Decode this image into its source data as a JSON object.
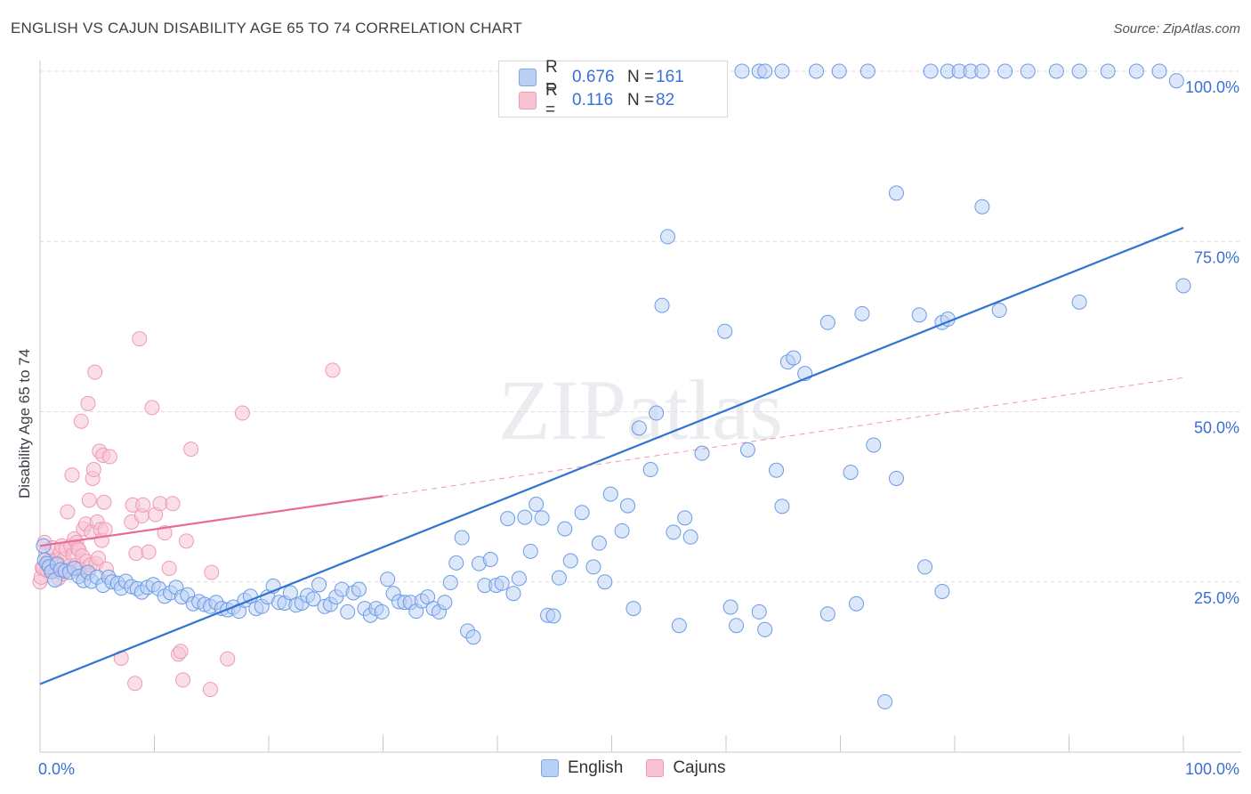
{
  "header": {
    "title": "ENGLISH VS CAJUN DISABILITY AGE 65 TO 74 CORRELATION CHART",
    "source": "Source: ZipAtlas.com"
  },
  "watermark": "ZIPatlas",
  "legend_top": {
    "rows": [
      {
        "r_label": "R =",
        "r_value": "0.676",
        "n_label": "N =",
        "n_value": "161"
      },
      {
        "r_label": "R =",
        "r_value": "0.116",
        "n_label": "N =",
        "n_value": "82"
      }
    ]
  },
  "legend_bottom": [
    "English",
    "Cajuns"
  ],
  "chart_data": {
    "type": "scatter",
    "title": "ENGLISH VS CAJUN DISABILITY AGE 65 TO 74 CORRELATION CHART",
    "xlabel": "",
    "ylabel": "Disability Age 65 to 74",
    "xlim": [
      0,
      100
    ],
    "ylim": [
      0,
      100
    ],
    "x_tick_labels": [
      "0.0%",
      "100.0%"
    ],
    "y_tick_labels": [
      "25.0%",
      "50.0%",
      "75.0%",
      "100.0%"
    ],
    "y_ticks": [
      25,
      50,
      75,
      100
    ],
    "grid": true,
    "legend_position": "top-center",
    "colors": {
      "English": "#6a9be6",
      "Cajuns": "#f08cad",
      "english_line": "#2e74d0",
      "cajun_line": "#e86b96",
      "axis_text": "#3a6fd6"
    },
    "series": [
      {
        "name": "English",
        "r": 0.676,
        "n": 161,
        "trend": {
          "x": [
            0,
            100
          ],
          "y": [
            10.0,
            77.0
          ]
        },
        "points": [
          [
            0.3,
            30.3
          ],
          [
            0.4,
            28.2
          ],
          [
            0.6,
            27.7
          ],
          [
            0.8,
            27.2
          ],
          [
            1.0,
            26.5
          ],
          [
            1.3,
            25.3
          ],
          [
            1.5,
            27.6
          ],
          [
            1.8,
            26.8
          ],
          [
            2.2,
            26.6
          ],
          [
            2.6,
            26.4
          ],
          [
            3.0,
            27.0
          ],
          [
            3.4,
            25.8
          ],
          [
            3.8,
            25.2
          ],
          [
            4.2,
            26.4
          ],
          [
            4.5,
            25.1
          ],
          [
            5.0,
            25.7
          ],
          [
            5.5,
            24.5
          ],
          [
            6.0,
            25.7
          ],
          [
            6.3,
            25.0
          ],
          [
            6.8,
            24.8
          ],
          [
            7.1,
            24.1
          ],
          [
            7.5,
            25.1
          ],
          [
            8.0,
            24.3
          ],
          [
            8.5,
            24.0
          ],
          [
            8.9,
            23.5
          ],
          [
            9.4,
            24.2
          ],
          [
            9.9,
            24.6
          ],
          [
            10.4,
            24.0
          ],
          [
            10.9,
            22.9
          ],
          [
            11.4,
            23.4
          ],
          [
            11.9,
            24.2
          ],
          [
            12.4,
            22.8
          ],
          [
            12.9,
            23.1
          ],
          [
            13.4,
            21.8
          ],
          [
            13.9,
            22.1
          ],
          [
            14.4,
            21.7
          ],
          [
            14.9,
            21.4
          ],
          [
            15.4,
            22.0
          ],
          [
            15.9,
            21.1
          ],
          [
            16.4,
            20.9
          ],
          [
            16.9,
            21.3
          ],
          [
            17.4,
            20.7
          ],
          [
            17.9,
            22.3
          ],
          [
            18.4,
            22.9
          ],
          [
            18.9,
            21.1
          ],
          [
            19.4,
            21.4
          ],
          [
            19.9,
            22.8
          ],
          [
            20.4,
            24.4
          ],
          [
            20.9,
            22.0
          ],
          [
            21.4,
            21.9
          ],
          [
            21.9,
            23.4
          ],
          [
            22.4,
            21.6
          ],
          [
            22.9,
            21.9
          ],
          [
            23.4,
            23.0
          ],
          [
            23.9,
            22.5
          ],
          [
            24.4,
            24.6
          ],
          [
            24.9,
            21.4
          ],
          [
            25.4,
            21.7
          ],
          [
            25.9,
            22.8
          ],
          [
            26.4,
            23.9
          ],
          [
            26.9,
            20.6
          ],
          [
            27.4,
            23.4
          ],
          [
            27.9,
            23.9
          ],
          [
            28.4,
            21.1
          ],
          [
            28.9,
            20.1
          ],
          [
            29.4,
            21.1
          ],
          [
            29.9,
            20.6
          ],
          [
            30.4,
            25.4
          ],
          [
            30.9,
            23.3
          ],
          [
            31.4,
            22.1
          ],
          [
            31.9,
            22.0
          ],
          [
            32.4,
            22.0
          ],
          [
            32.9,
            20.7
          ],
          [
            33.4,
            22.2
          ],
          [
            33.9,
            22.8
          ],
          [
            34.4,
            21.1
          ],
          [
            34.9,
            20.6
          ],
          [
            35.4,
            22.0
          ],
          [
            35.9,
            24.9
          ],
          [
            36.4,
            27.8
          ],
          [
            36.9,
            31.5
          ],
          [
            37.4,
            17.8
          ],
          [
            37.9,
            16.9
          ],
          [
            38.4,
            27.7
          ],
          [
            38.9,
            24.5
          ],
          [
            39.4,
            28.3
          ],
          [
            39.9,
            24.5
          ],
          [
            40.4,
            24.8
          ],
          [
            40.9,
            34.3
          ],
          [
            41.4,
            23.3
          ],
          [
            41.9,
            25.5
          ],
          [
            42.4,
            34.5
          ],
          [
            42.9,
            29.5
          ],
          [
            43.4,
            36.4
          ],
          [
            43.9,
            34.4
          ],
          [
            44.4,
            20.1
          ],
          [
            44.9,
            20.0
          ],
          [
            45.4,
            25.6
          ],
          [
            45.9,
            32.8
          ],
          [
            46.4,
            28.1
          ],
          [
            47.4,
            35.2
          ],
          [
            48.4,
            27.2
          ],
          [
            48.9,
            30.7
          ],
          [
            49.4,
            25.0
          ],
          [
            49.9,
            37.9
          ],
          [
            50.9,
            32.5
          ],
          [
            51.4,
            36.2
          ],
          [
            51.9,
            21.1
          ],
          [
            52.4,
            47.6
          ],
          [
            53.4,
            41.5
          ],
          [
            53.9,
            49.8
          ],
          [
            54.4,
            65.6
          ],
          [
            54.9,
            75.7
          ],
          [
            55.4,
            32.3
          ],
          [
            55.9,
            18.6
          ],
          [
            56.4,
            34.4
          ],
          [
            56.9,
            31.6
          ],
          [
            57.9,
            43.9
          ],
          [
            59.9,
            61.8
          ],
          [
            60.4,
            21.3
          ],
          [
            60.9,
            18.6
          ],
          [
            61.9,
            44.4
          ],
          [
            62.9,
            20.6
          ],
          [
            63.4,
            18.0
          ],
          [
            64.4,
            41.4
          ],
          [
            64.9,
            36.1
          ],
          [
            65.4,
            57.3
          ],
          [
            65.9,
            57.9
          ],
          [
            66.9,
            55.6
          ],
          [
            68.9,
            63.1
          ],
          [
            68.9,
            20.3
          ],
          [
            70.9,
            41.1
          ],
          [
            71.4,
            21.8
          ],
          [
            71.9,
            64.4
          ],
          [
            72.9,
            45.1
          ],
          [
            73.9,
            7.4
          ],
          [
            74.9,
            40.2
          ],
          [
            74.9,
            82.1
          ],
          [
            76.9,
            64.2
          ],
          [
            77.4,
            27.2
          ],
          [
            78.9,
            63.1
          ],
          [
            78.9,
            23.6
          ],
          [
            79.4,
            63.6
          ],
          [
            82.4,
            80.1
          ],
          [
            83.9,
            64.9
          ],
          [
            90.9,
            66.1
          ],
          [
            99.4,
            98.6
          ],
          [
            100.0,
            68.5
          ],
          [
            52.9,
            100.0
          ],
          [
            55.9,
            100.0
          ],
          [
            57.4,
            100.0
          ],
          [
            58.4,
            94.5
          ],
          [
            61.4,
            100.0
          ],
          [
            62.9,
            100.0
          ],
          [
            63.4,
            100.0
          ],
          [
            64.9,
            100.0
          ],
          [
            67.9,
            100.0
          ],
          [
            69.9,
            100.0
          ],
          [
            72.4,
            100.0
          ],
          [
            77.9,
            100.0
          ],
          [
            79.4,
            100.0
          ],
          [
            80.4,
            100.0
          ],
          [
            81.4,
            100.0
          ],
          [
            82.4,
            100.0
          ],
          [
            84.4,
            100.0
          ],
          [
            86.4,
            100.0
          ],
          [
            88.9,
            100.0
          ],
          [
            90.9,
            100.0
          ],
          [
            93.4,
            100.0
          ],
          [
            95.9,
            100.0
          ],
          [
            97.9,
            100.0
          ]
        ]
      },
      {
        "name": "Cajuns",
        "r": 0.116,
        "n": 82,
        "trend": {
          "x": [
            0,
            30
          ],
          "y": [
            30.3,
            37.6
          ]
        },
        "trend_extension": {
          "x": [
            30,
            100
          ],
          "y": [
            37.6,
            55.0
          ]
        },
        "points": [
          [
            0.0,
            25.0
          ],
          [
            0.1,
            25.7
          ],
          [
            0.2,
            27.1
          ],
          [
            0.3,
            27.0
          ],
          [
            0.4,
            30.8
          ],
          [
            0.5,
            29.3
          ],
          [
            0.6,
            26.7
          ],
          [
            0.7,
            28.0
          ],
          [
            0.8,
            27.4
          ],
          [
            0.9,
            27.1
          ],
          [
            1.0,
            26.7
          ],
          [
            1.1,
            30.0
          ],
          [
            1.3,
            28.2
          ],
          [
            1.4,
            26.5
          ],
          [
            1.5,
            27.8
          ],
          [
            1.6,
            25.5
          ],
          [
            1.8,
            29.4
          ],
          [
            1.9,
            30.3
          ],
          [
            2.0,
            26.2
          ],
          [
            2.1,
            28.3
          ],
          [
            2.2,
            26.6
          ],
          [
            2.3,
            29.8
          ],
          [
            2.4,
            35.3
          ],
          [
            2.5,
            26.8
          ],
          [
            2.6,
            27.4
          ],
          [
            2.7,
            30.3
          ],
          [
            2.8,
            40.7
          ],
          [
            2.9,
            29.0
          ],
          [
            3.0,
            31.3
          ],
          [
            3.1,
            27.4
          ],
          [
            3.2,
            30.8
          ],
          [
            3.3,
            29.9
          ],
          [
            3.4,
            29.7
          ],
          [
            3.5,
            26.9
          ],
          [
            3.6,
            48.6
          ],
          [
            3.7,
            28.8
          ],
          [
            3.8,
            32.8
          ],
          [
            3.9,
            26.1
          ],
          [
            4.0,
            33.5
          ],
          [
            4.1,
            28.0
          ],
          [
            4.2,
            51.2
          ],
          [
            4.3,
            37.0
          ],
          [
            4.4,
            27.5
          ],
          [
            4.5,
            32.3
          ],
          [
            4.6,
            40.2
          ],
          [
            4.7,
            41.5
          ],
          [
            4.8,
            55.8
          ],
          [
            4.9,
            27.7
          ],
          [
            5.0,
            33.8
          ],
          [
            5.1,
            28.5
          ],
          [
            5.2,
            44.2
          ],
          [
            5.3,
            32.7
          ],
          [
            5.4,
            31.1
          ],
          [
            5.5,
            43.6
          ],
          [
            5.6,
            36.7
          ],
          [
            5.7,
            32.7
          ],
          [
            5.8,
            26.9
          ],
          [
            6.1,
            43.4
          ],
          [
            7.1,
            13.8
          ],
          [
            8.0,
            33.8
          ],
          [
            8.1,
            36.3
          ],
          [
            8.3,
            10.1
          ],
          [
            8.4,
            29.2
          ],
          [
            8.7,
            60.7
          ],
          [
            8.9,
            34.7
          ],
          [
            9.0,
            36.3
          ],
          [
            9.5,
            29.4
          ],
          [
            9.8,
            50.6
          ],
          [
            10.1,
            34.9
          ],
          [
            10.5,
            36.5
          ],
          [
            10.9,
            32.2
          ],
          [
            11.3,
            27.0
          ],
          [
            11.6,
            36.5
          ],
          [
            12.1,
            14.4
          ],
          [
            12.3,
            14.8
          ],
          [
            12.5,
            10.6
          ],
          [
            12.8,
            31.0
          ],
          [
            13.2,
            44.5
          ],
          [
            14.9,
            9.2
          ],
          [
            15.0,
            26.4
          ],
          [
            16.4,
            13.7
          ],
          [
            17.7,
            49.8
          ],
          [
            25.6,
            56.1
          ]
        ]
      }
    ]
  }
}
